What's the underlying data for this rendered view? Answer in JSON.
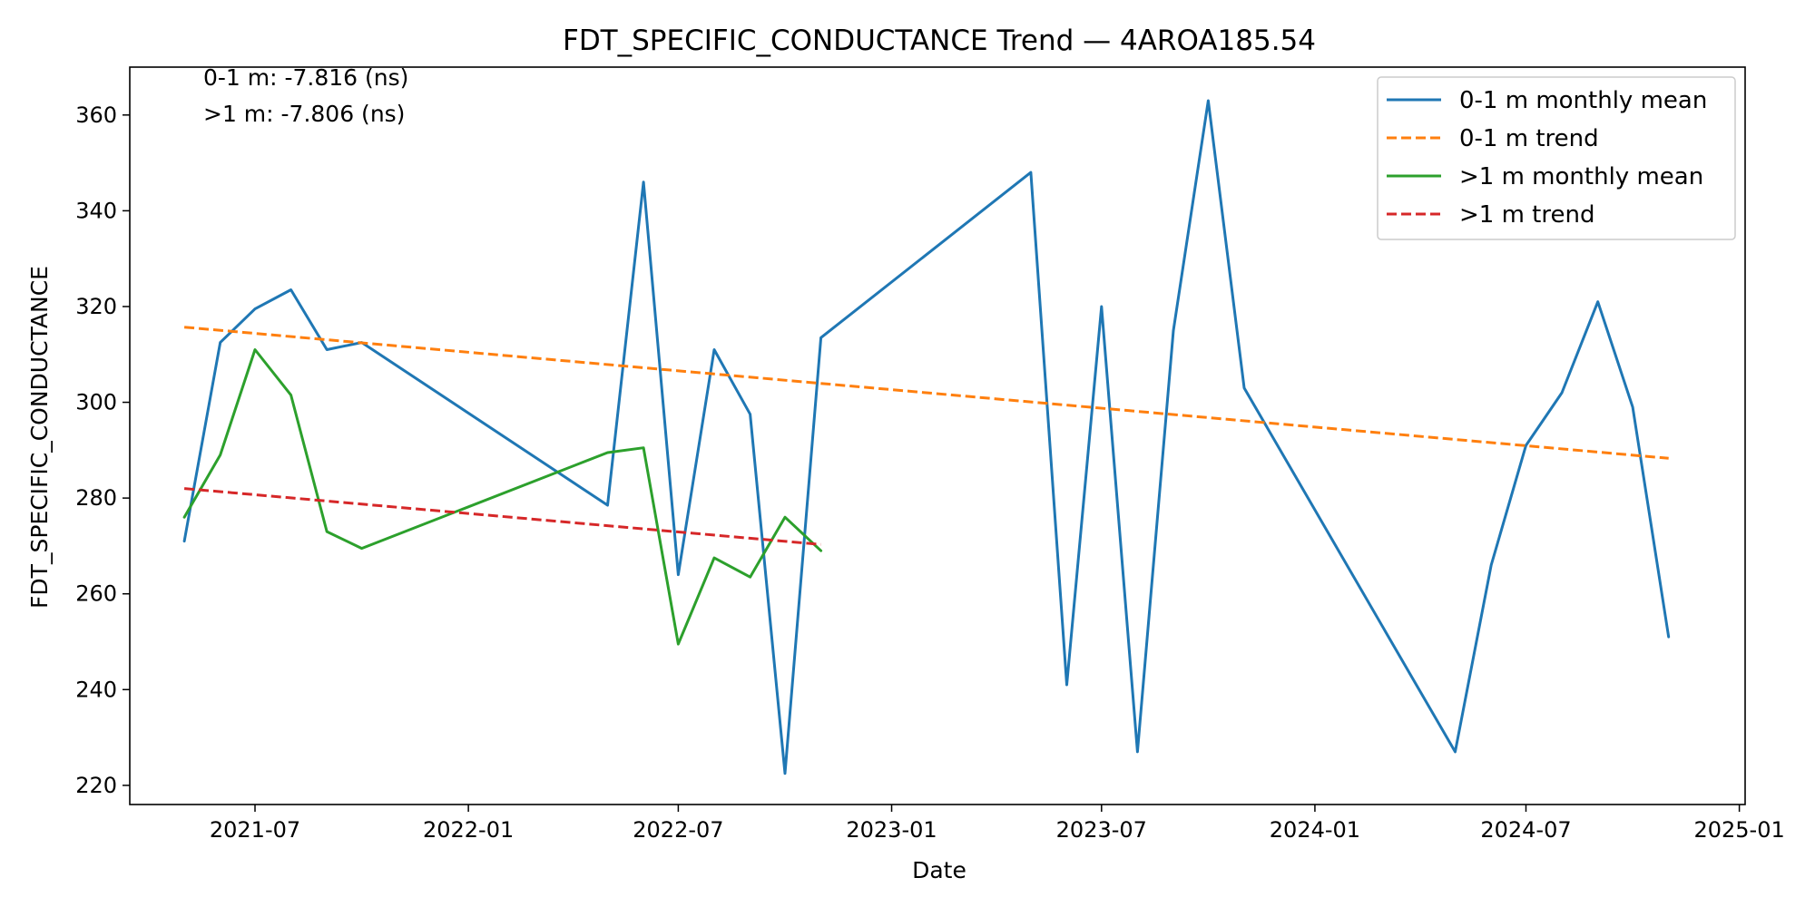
{
  "chart_data": {
    "type": "line",
    "title": "FDT_SPECIFIC_CONDUCTANCE Trend — 4AROA185.54",
    "xlabel": "Date",
    "ylabel": "FDT_SPECIFIC_CONDUCTANCE",
    "xlim": [
      "2021-03-15",
      "2025-01-06"
    ],
    "ylim": [
      216,
      370
    ],
    "x_ticks": [
      "2021-07",
      "2022-01",
      "2022-07",
      "2023-01",
      "2023-07",
      "2024-01",
      "2024-07",
      "2025-01"
    ],
    "y_ticks": [
      220,
      240,
      260,
      280,
      300,
      320,
      340,
      360
    ],
    "grid": false,
    "legend_position": "upper right",
    "annotations": [
      "0-1 m: -7.816 (ns)",
      ">1 m: -7.806 (ns)"
    ],
    "series": [
      {
        "name": "0-1 m monthly mean",
        "style": "solid",
        "color": "#1f77b4",
        "points": [
          [
            "2021-05-01",
            271
          ],
          [
            "2021-06-01",
            312.5
          ],
          [
            "2021-07-01",
            319.5
          ],
          [
            "2021-08-01",
            323.5
          ],
          [
            "2021-09-01",
            311
          ],
          [
            "2021-10-01",
            312.5
          ],
          [
            "2022-05-01",
            278.5
          ],
          [
            "2022-06-01",
            346
          ],
          [
            "2022-07-01",
            264
          ],
          [
            "2022-08-01",
            311
          ],
          [
            "2022-09-01",
            297.5
          ],
          [
            "2022-10-01",
            222.5
          ],
          [
            "2022-11-01",
            313.5
          ],
          [
            "2023-05-01",
            348
          ],
          [
            "2023-06-01",
            241
          ],
          [
            "2023-07-01",
            320
          ],
          [
            "2023-08-01",
            227
          ],
          [
            "2023-09-01",
            315
          ],
          [
            "2023-10-01",
            363
          ],
          [
            "2023-11-01",
            303
          ],
          [
            "2024-05-01",
            227
          ],
          [
            "2024-06-01",
            266
          ],
          [
            "2024-07-01",
            291
          ],
          [
            "2024-08-01",
            302
          ],
          [
            "2024-09-01",
            321
          ],
          [
            "2024-10-01",
            299
          ],
          [
            "2024-11-01",
            251
          ]
        ]
      },
      {
        "name": "0-1 m trend",
        "style": "dashed",
        "color": "#ff7f0e",
        "points": [
          [
            "2021-05-01",
            315.7
          ],
          [
            "2024-11-01",
            288.3
          ]
        ]
      },
      {
        "name": ">1 m monthly mean",
        "style": "solid",
        "color": "#2ca02c",
        "points": [
          [
            "2021-05-01",
            276
          ],
          [
            "2021-06-01",
            289
          ],
          [
            "2021-07-01",
            311
          ],
          [
            "2021-08-01",
            301.5
          ],
          [
            "2021-09-01",
            273
          ],
          [
            "2021-10-01",
            269.5
          ],
          [
            "2022-05-01",
            289.5
          ],
          [
            "2022-06-01",
            290.5
          ],
          [
            "2022-07-01",
            249.5
          ],
          [
            "2022-08-01",
            267.5
          ],
          [
            "2022-09-01",
            263.5
          ],
          [
            "2022-10-01",
            276
          ],
          [
            "2022-11-01",
            269
          ]
        ]
      },
      {
        "name": ">1 m trend",
        "style": "dashed",
        "color": "#d62728",
        "points": [
          [
            "2021-05-01",
            282
          ],
          [
            "2022-11-01",
            270.3
          ]
        ]
      }
    ]
  }
}
